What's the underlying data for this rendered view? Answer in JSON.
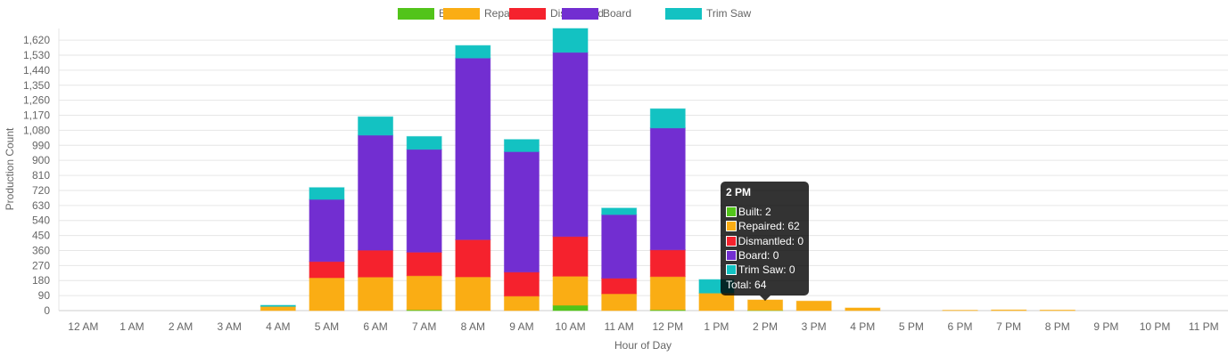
{
  "chart_data": {
    "type": "bar",
    "stacked": true,
    "xlabel": "Hour of Day",
    "ylabel": "Production Count",
    "ylim": [
      0,
      1690
    ],
    "ytick_step": 90,
    "grid": true,
    "legend": "top",
    "categories": [
      "12 AM",
      "1 AM",
      "2 AM",
      "3 AM",
      "4 AM",
      "5 AM",
      "6 AM",
      "7 AM",
      "8 AM",
      "9 AM",
      "10 AM",
      "11 AM",
      "12 PM",
      "1 PM",
      "2 PM",
      "3 PM",
      "4 PM",
      "5 PM",
      "6 PM",
      "7 PM",
      "8 PM",
      "9 PM",
      "10 PM",
      "11 PM"
    ],
    "series": [
      {
        "name": "Built",
        "color": "#52c41a",
        "values": [
          0,
          0,
          0,
          0,
          0,
          0,
          0,
          5,
          0,
          0,
          32,
          0,
          5,
          0,
          2,
          0,
          0,
          0,
          0,
          0,
          0,
          0,
          0,
          0
        ]
      },
      {
        "name": "Repaired",
        "color": "#faad14",
        "values": [
          0,
          0,
          0,
          0,
          25,
          197,
          201,
          204,
          202,
          87,
          174,
          101,
          199,
          105,
          62,
          57,
          16,
          0,
          2,
          4,
          3,
          0,
          0,
          0
        ]
      },
      {
        "name": "Dismantled",
        "color": "#f5222d",
        "values": [
          0,
          0,
          0,
          0,
          0,
          97,
          161,
          141,
          223,
          144,
          238,
          93,
          160,
          0,
          0,
          0,
          0,
          0,
          0,
          0,
          0,
          0,
          0,
          0
        ]
      },
      {
        "name": "Board",
        "color": "#722ed1",
        "values": [
          0,
          0,
          0,
          0,
          0,
          372,
          689,
          616,
          1088,
          721,
          1103,
          381,
          730,
          0,
          0,
          0,
          0,
          0,
          0,
          0,
          0,
          0,
          0,
          0
        ]
      },
      {
        "name": "Trim Saw",
        "color": "#13c2c2",
        "values": [
          0,
          0,
          0,
          0,
          7,
          71,
          110,
          77,
          75,
          73,
          143,
          39,
          115,
          81,
          0,
          0,
          0,
          0,
          0,
          0,
          0,
          0,
          0,
          0
        ]
      }
    ],
    "tooltip": {
      "title": "2 PM",
      "lines": [
        "Built: 2",
        "Repaired: 62",
        "Dismantled: 0",
        "Board: 0",
        "Trim Saw: 0"
      ],
      "total": "Total: 64"
    }
  }
}
